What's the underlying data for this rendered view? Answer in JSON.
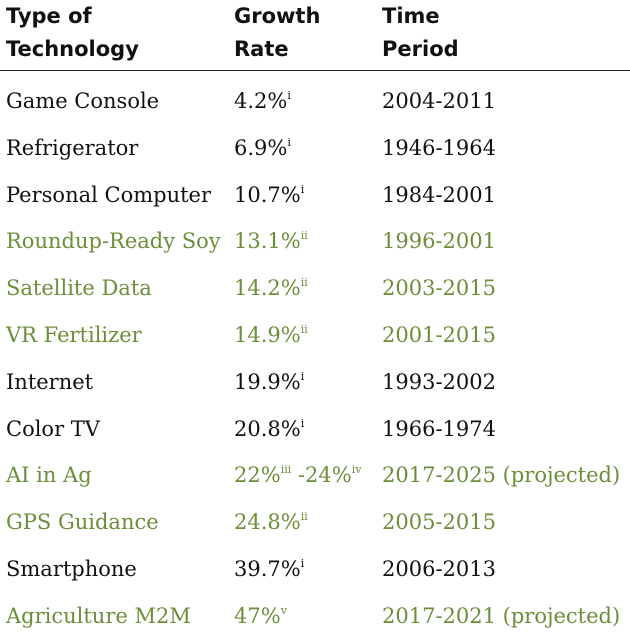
{
  "headers": {
    "technology": [
      "Type of",
      "Technology"
    ],
    "growth": [
      "Growth",
      "Rate"
    ],
    "period": [
      "Time",
      "Period"
    ]
  },
  "rows": [
    {
      "technology": "Game Console",
      "growth": "4.2%",
      "growth_note": "i",
      "period": "2004-2011",
      "agri": false
    },
    {
      "technology": "Refrigerator",
      "growth": "6.9%",
      "growth_note": "i",
      "period": "1946-1964",
      "agri": false
    },
    {
      "technology": "Personal Computer",
      "growth": "10.7%",
      "growth_note": "i",
      "period": "1984-2001",
      "agri": false
    },
    {
      "technology": "Roundup-Ready Soy",
      "growth": "13.1%",
      "growth_note": "ii",
      "period": "1996-2001",
      "agri": true
    },
    {
      "technology": "Satellite Data",
      "growth": "14.2%",
      "growth_note": "ii",
      "period": "2003-2015",
      "agri": true
    },
    {
      "technology": "VR Fertilizer",
      "growth": "14.9%",
      "growth_note": "ii",
      "period": "2001-2015",
      "agri": true
    },
    {
      "technology": "Internet",
      "growth": "19.9%",
      "growth_note": "i",
      "period": "1993-2002",
      "agri": false
    },
    {
      "technology": "Color TV",
      "growth": "20.8%",
      "growth_note": "i",
      "period": "1966-1974",
      "agri": false
    },
    {
      "technology": "AI in Ag",
      "growth": "22%",
      "growth_note": "iii",
      "growth_2": " -24%",
      "growth_note_2": "iv",
      "period": "2017-2025 (projected)",
      "agri": true
    },
    {
      "technology": "GPS Guidance",
      "growth": "24.8%",
      "growth_note": "ii",
      "period": "2005-2015",
      "agri": true
    },
    {
      "technology": "Smartphone",
      "growth": "39.7%",
      "growth_note": "i",
      "period": "2006-2013",
      "agri": false
    },
    {
      "technology": "Agriculture M2M",
      "growth": "47%",
      "growth_note": "v",
      "period": "2017-2021 (projected)",
      "agri": true
    }
  ],
  "colors": {
    "agriculture_text": "#6b8e3a",
    "default_text": "#111111"
  }
}
